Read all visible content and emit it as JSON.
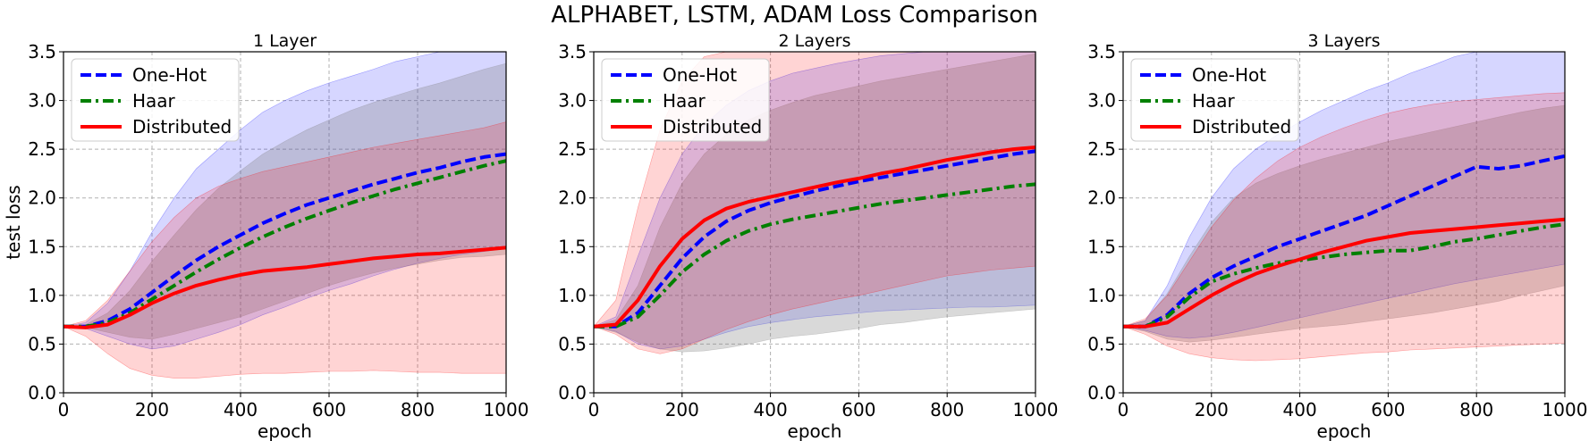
{
  "suptitle": "ALPHABET, LSTM, ADAM Loss Comparison",
  "colors": {
    "one_hot": "#0000ff",
    "haar": "#008000",
    "distributed": "#ff0000",
    "band_one_hot": "#0000ff",
    "band_haar": "#808080",
    "band_distributed": "#ff0000",
    "grid": "#b0b0b0"
  },
  "chart_data": [
    {
      "type": "line",
      "title": "1 Layer",
      "xlabel": "epoch",
      "ylabel": "test loss",
      "xlim": [
        0,
        1000
      ],
      "ylim": [
        0,
        3.5
      ],
      "xticks": [
        0,
        200,
        400,
        600,
        800,
        1000
      ],
      "yticks": [
        0.0,
        0.5,
        1.0,
        1.5,
        2.0,
        2.5,
        3.0,
        3.5
      ],
      "grid": true,
      "legend": "top-left",
      "x": [
        0,
        50,
        100,
        150,
        200,
        250,
        300,
        350,
        400,
        450,
        500,
        550,
        600,
        650,
        700,
        750,
        800,
        850,
        900,
        950,
        1000
      ],
      "series": [
        {
          "name": "One-Hot",
          "style": "dashed",
          "values": [
            0.68,
            0.68,
            0.74,
            0.86,
            1.03,
            1.2,
            1.36,
            1.5,
            1.62,
            1.74,
            1.84,
            1.93,
            2.0,
            2.07,
            2.14,
            2.2,
            2.26,
            2.31,
            2.37,
            2.42,
            2.45
          ],
          "lower": [
            0.68,
            0.66,
            0.58,
            0.5,
            0.45,
            0.48,
            0.55,
            0.62,
            0.7,
            0.8,
            0.88,
            0.97,
            1.05,
            1.12,
            1.2,
            1.27,
            1.33,
            1.38,
            1.42,
            1.45,
            1.48
          ],
          "upper": [
            0.68,
            0.72,
            0.92,
            1.25,
            1.65,
            2.0,
            2.3,
            2.5,
            2.7,
            2.88,
            3.0,
            3.1,
            3.18,
            3.25,
            3.32,
            3.4,
            3.45,
            3.5,
            3.5,
            3.5,
            3.5
          ]
        },
        {
          "name": "Haar",
          "style": "dashdot",
          "values": [
            0.68,
            0.68,
            0.72,
            0.82,
            0.96,
            1.1,
            1.24,
            1.37,
            1.49,
            1.6,
            1.7,
            1.79,
            1.87,
            1.95,
            2.02,
            2.09,
            2.15,
            2.21,
            2.27,
            2.33,
            2.38
          ],
          "lower": [
            0.68,
            0.67,
            0.62,
            0.57,
            0.55,
            0.6,
            0.66,
            0.72,
            0.78,
            0.86,
            0.94,
            1.02,
            1.1,
            1.17,
            1.23,
            1.28,
            1.32,
            1.36,
            1.39,
            1.4,
            1.42
          ],
          "upper": [
            0.68,
            0.7,
            0.82,
            1.05,
            1.35,
            1.62,
            1.88,
            2.1,
            2.28,
            2.45,
            2.58,
            2.7,
            2.8,
            2.9,
            2.98,
            3.05,
            3.12,
            3.18,
            3.25,
            3.32,
            3.38
          ]
        },
        {
          "name": "Distributed",
          "style": "solid",
          "values": [
            0.68,
            0.67,
            0.7,
            0.8,
            0.92,
            1.02,
            1.1,
            1.16,
            1.21,
            1.25,
            1.27,
            1.29,
            1.32,
            1.35,
            1.38,
            1.4,
            1.42,
            1.43,
            1.45,
            1.47,
            1.49
          ],
          "lower": [
            0.68,
            0.58,
            0.4,
            0.25,
            0.18,
            0.15,
            0.15,
            0.17,
            0.19,
            0.2,
            0.2,
            0.21,
            0.22,
            0.22,
            0.23,
            0.22,
            0.21,
            0.21,
            0.2,
            0.2,
            0.2
          ],
          "upper": [
            0.68,
            0.74,
            0.95,
            1.25,
            1.55,
            1.8,
            2.0,
            2.12,
            2.2,
            2.27,
            2.32,
            2.37,
            2.42,
            2.47,
            2.52,
            2.56,
            2.6,
            2.64,
            2.68,
            2.72,
            2.78
          ]
        }
      ]
    },
    {
      "type": "line",
      "title": "2 Layers",
      "xlabel": "epoch",
      "ylabel": "",
      "xlim": [
        0,
        1000
      ],
      "ylim": [
        0,
        3.5
      ],
      "xticks": [
        0,
        200,
        400,
        600,
        800,
        1000
      ],
      "yticks": [
        0.0,
        0.5,
        1.0,
        1.5,
        2.0,
        2.5,
        3.0,
        3.5
      ],
      "grid": true,
      "legend": "top-left",
      "x": [
        0,
        50,
        100,
        150,
        200,
        250,
        300,
        350,
        400,
        450,
        500,
        550,
        600,
        650,
        700,
        750,
        800,
        850,
        900,
        950,
        1000
      ],
      "series": [
        {
          "name": "One-Hot",
          "style": "dashed",
          "values": [
            0.68,
            0.68,
            0.82,
            1.1,
            1.38,
            1.6,
            1.76,
            1.87,
            1.95,
            2.01,
            2.07,
            2.12,
            2.17,
            2.21,
            2.25,
            2.29,
            2.33,
            2.37,
            2.41,
            2.45,
            2.48
          ],
          "lower": [
            0.68,
            0.63,
            0.5,
            0.45,
            0.48,
            0.55,
            0.62,
            0.68,
            0.72,
            0.75,
            0.78,
            0.8,
            0.82,
            0.84,
            0.85,
            0.86,
            0.87,
            0.88,
            0.88,
            0.89,
            0.9
          ],
          "upper": [
            0.68,
            0.78,
            1.4,
            2.0,
            2.45,
            2.75,
            2.95,
            3.1,
            3.2,
            3.28,
            3.33,
            3.38,
            3.42,
            3.46,
            3.48,
            3.5,
            3.5,
            3.5,
            3.5,
            3.5,
            3.5
          ]
        },
        {
          "name": "Haar",
          "style": "dashdot",
          "values": [
            0.68,
            0.68,
            0.78,
            1.0,
            1.24,
            1.42,
            1.56,
            1.66,
            1.73,
            1.78,
            1.82,
            1.86,
            1.9,
            1.94,
            1.97,
            2.0,
            2.03,
            2.06,
            2.09,
            2.12,
            2.14
          ],
          "lower": [
            0.68,
            0.62,
            0.52,
            0.45,
            0.42,
            0.43,
            0.46,
            0.5,
            0.55,
            0.58,
            0.6,
            0.63,
            0.66,
            0.7,
            0.72,
            0.75,
            0.78,
            0.8,
            0.82,
            0.84,
            0.86
          ],
          "upper": [
            0.68,
            0.75,
            1.1,
            1.7,
            2.15,
            2.45,
            2.65,
            2.8,
            2.9,
            2.98,
            3.05,
            3.1,
            3.15,
            3.2,
            3.24,
            3.28,
            3.32,
            3.36,
            3.4,
            3.44,
            3.48
          ]
        },
        {
          "name": "Distributed",
          "style": "solid",
          "values": [
            0.68,
            0.7,
            0.95,
            1.3,
            1.58,
            1.77,
            1.89,
            1.96,
            2.01,
            2.06,
            2.11,
            2.16,
            2.2,
            2.25,
            2.29,
            2.34,
            2.39,
            2.43,
            2.47,
            2.5,
            2.52
          ],
          "lower": [
            0.68,
            0.6,
            0.45,
            0.4,
            0.45,
            0.55,
            0.65,
            0.73,
            0.8,
            0.86,
            0.91,
            0.96,
            1.0,
            1.05,
            1.1,
            1.15,
            1.2,
            1.23,
            1.26,
            1.28,
            1.3
          ],
          "upper": [
            0.68,
            0.95,
            1.9,
            2.7,
            3.2,
            3.45,
            3.5,
            3.5,
            3.5,
            3.5,
            3.5,
            3.5,
            3.5,
            3.5,
            3.5,
            3.5,
            3.5,
            3.5,
            3.5,
            3.5,
            3.5
          ]
        }
      ]
    },
    {
      "type": "line",
      "title": "3 Layers",
      "xlabel": "epoch",
      "ylabel": "",
      "xlim": [
        0,
        1000
      ],
      "ylim": [
        0,
        3.5
      ],
      "xticks": [
        0,
        200,
        400,
        600,
        800,
        1000
      ],
      "yticks": [
        0.0,
        0.5,
        1.0,
        1.5,
        2.0,
        2.5,
        3.0,
        3.5
      ],
      "grid": true,
      "legend": "top-left",
      "x": [
        0,
        50,
        100,
        150,
        200,
        250,
        300,
        350,
        400,
        450,
        500,
        550,
        600,
        650,
        700,
        750,
        800,
        850,
        900,
        950,
        1000
      ],
      "series": [
        {
          "name": "One-Hot",
          "style": "dashed",
          "values": [
            0.68,
            0.68,
            0.8,
            1.02,
            1.18,
            1.3,
            1.4,
            1.5,
            1.58,
            1.66,
            1.74,
            1.82,
            1.92,
            2.02,
            2.12,
            2.22,
            2.32,
            2.3,
            2.33,
            2.38,
            2.43
          ],
          "lower": [
            0.68,
            0.64,
            0.58,
            0.56,
            0.58,
            0.62,
            0.67,
            0.72,
            0.77,
            0.82,
            0.87,
            0.92,
            0.97,
            1.02,
            1.07,
            1.12,
            1.16,
            1.2,
            1.24,
            1.28,
            1.32
          ],
          "upper": [
            0.68,
            0.74,
            1.1,
            1.6,
            2.0,
            2.3,
            2.5,
            2.65,
            2.78,
            2.9,
            3.0,
            3.1,
            3.18,
            3.28,
            3.36,
            3.45,
            3.5,
            3.5,
            3.5,
            3.5,
            3.5
          ]
        },
        {
          "name": "Haar",
          "style": "dashdot",
          "values": [
            0.68,
            0.68,
            0.78,
            0.98,
            1.14,
            1.22,
            1.28,
            1.33,
            1.36,
            1.39,
            1.42,
            1.44,
            1.46,
            1.46,
            1.5,
            1.55,
            1.58,
            1.62,
            1.66,
            1.7,
            1.73
          ],
          "lower": [
            0.68,
            0.63,
            0.55,
            0.52,
            0.54,
            0.57,
            0.6,
            0.63,
            0.66,
            0.68,
            0.7,
            0.73,
            0.76,
            0.79,
            0.82,
            0.86,
            0.9,
            0.94,
            1.0,
            1.05,
            1.1
          ],
          "upper": [
            0.68,
            0.74,
            1.02,
            1.4,
            1.75,
            2.0,
            2.15,
            2.25,
            2.33,
            2.4,
            2.46,
            2.52,
            2.58,
            2.63,
            2.68,
            2.73,
            2.78,
            2.83,
            2.88,
            2.92,
            2.95
          ]
        },
        {
          "name": "Distributed",
          "style": "solid",
          "values": [
            0.68,
            0.68,
            0.72,
            0.86,
            1.0,
            1.12,
            1.22,
            1.3,
            1.37,
            1.44,
            1.5,
            1.56,
            1.6,
            1.64,
            1.66,
            1.68,
            1.7,
            1.72,
            1.74,
            1.76,
            1.78
          ],
          "lower": [
            0.68,
            0.6,
            0.48,
            0.4,
            0.36,
            0.34,
            0.33,
            0.34,
            0.35,
            0.37,
            0.39,
            0.41,
            0.42,
            0.44,
            0.45,
            0.46,
            0.47,
            0.48,
            0.49,
            0.5,
            0.51
          ],
          "upper": [
            0.68,
            0.76,
            1.0,
            1.35,
            1.7,
            1.98,
            2.2,
            2.38,
            2.52,
            2.63,
            2.72,
            2.8,
            2.87,
            2.92,
            2.96,
            2.99,
            3.01,
            3.03,
            3.05,
            3.07,
            3.08
          ]
        }
      ]
    }
  ]
}
